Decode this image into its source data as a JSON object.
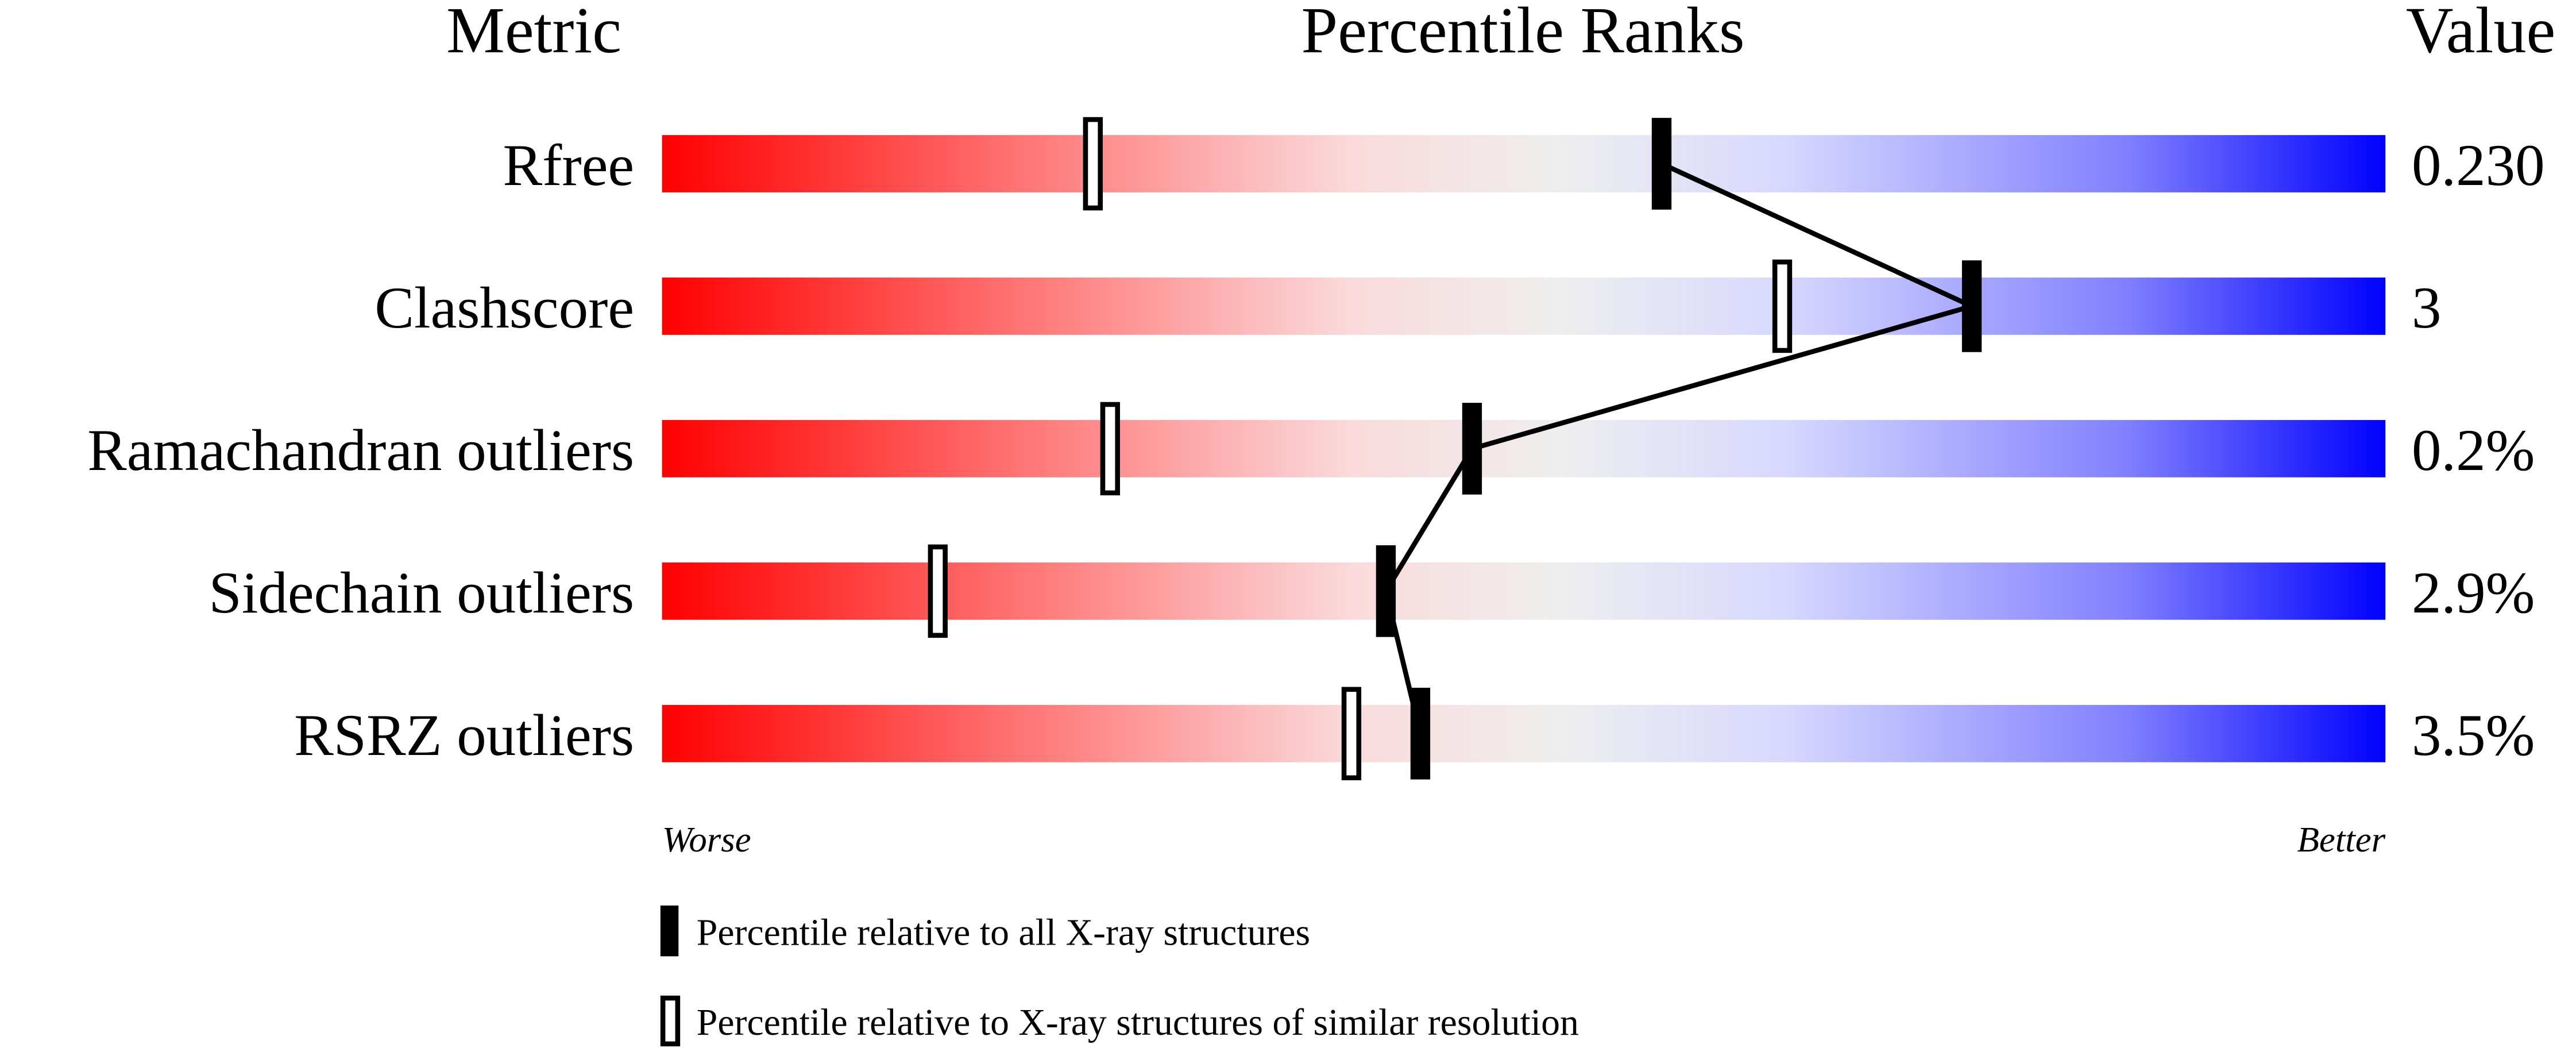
{
  "chart_data": {
    "type": "percentile-slider",
    "headers": {
      "metric": "Metric",
      "ranks": "Percentile Ranks",
      "value": "Value"
    },
    "xlim": [
      0,
      100
    ],
    "scale_labels": {
      "left": "Worse",
      "right": "Better"
    },
    "gradient_colors": [
      "#ff0000",
      "#ff7070",
      "#fadadb",
      "#eeeeee",
      "#d8d8ff",
      "#8080ff",
      "#0000ff"
    ],
    "metrics": [
      {
        "name": "Rfree",
        "value": "0.230",
        "percentile_all": 58,
        "percentile_similar": 25
      },
      {
        "name": "Clashscore",
        "value": "3",
        "percentile_all": 76,
        "percentile_similar": 65
      },
      {
        "name": "Ramachandran outliers",
        "value": "0.2%",
        "percentile_all": 47,
        "percentile_similar": 26
      },
      {
        "name": "Sidechain outliers",
        "value": "2.9%",
        "percentile_all": 42,
        "percentile_similar": 16
      },
      {
        "name": "RSRZ outliers",
        "value": "3.5%",
        "percentile_all": 44,
        "percentile_similar": 40
      }
    ],
    "legend": {
      "all": "Percentile relative to all X-ray structures",
      "similar": "Percentile relative to X-ray structures of similar resolution"
    }
  }
}
